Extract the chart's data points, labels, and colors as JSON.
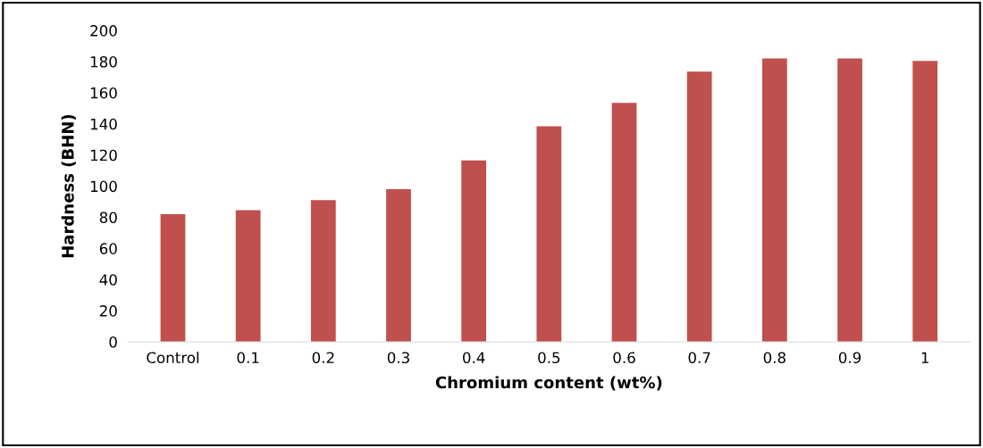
{
  "chart_data": {
    "type": "bar",
    "xlabel": "Chromium content (wt%)",
    "ylabel": "Hardness (BHN)",
    "categories": [
      "Control",
      "0.1",
      "0.2",
      "0.3",
      "0.4",
      "0.5",
      "0.6",
      "0.7",
      "0.8",
      "0.9",
      "1"
    ],
    "values": [
      82,
      84.5,
      91,
      98,
      116.5,
      138.5,
      153.5,
      173.5,
      182,
      182,
      180.5
    ],
    "color": "#c0504d",
    "ylim": [
      0,
      200
    ],
    "yticks": [
      0,
      20,
      40,
      60,
      80,
      100,
      120,
      140,
      160,
      180,
      200
    ],
    "grid": false
  }
}
